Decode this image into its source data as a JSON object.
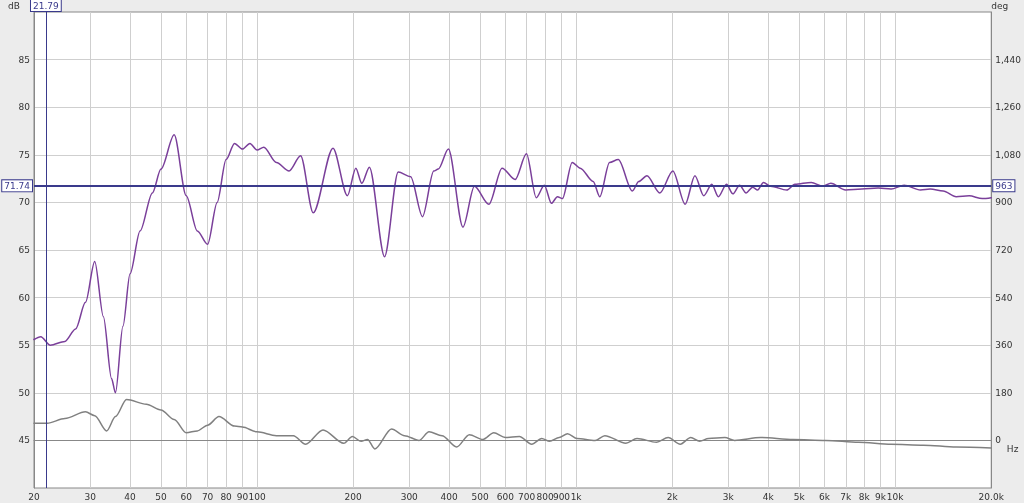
{
  "chart_data": {
    "type": "line",
    "xlabel": "Hz",
    "ylabel": "dB",
    "y2label": "deg",
    "log": "x",
    "grid": true,
    "marker": "none",
    "xlim": [
      20,
      20000
    ],
    "xticks": [
      20,
      30,
      40,
      50,
      60,
      70,
      80,
      90,
      100,
      200,
      300,
      400,
      500,
      600,
      700,
      800,
      900,
      {
        "value": 1000,
        "label": "1k"
      },
      {
        "value": 2000,
        "label": "2k"
      },
      {
        "value": 3000,
        "label": "3k"
      },
      {
        "value": 4000,
        "label": "4k"
      },
      {
        "value": 5000,
        "label": "5k"
      },
      {
        "value": 6000,
        "label": "6k"
      },
      {
        "value": 7000,
        "label": "7k"
      },
      {
        "value": 8000,
        "label": "8k"
      },
      {
        "value": 9000,
        "label": "9k"
      },
      {
        "value": 10000,
        "label": "10k"
      },
      {
        "value": 20000,
        "label": "20.0k"
      }
    ],
    "ylim": [
      40,
      90
    ],
    "yticks": [
      45,
      50,
      55,
      60,
      65,
      70,
      75,
      80,
      85
    ],
    "y2lim": [
      -180,
      1620
    ],
    "y2ticks": [
      0,
      180,
      360,
      540,
      720,
      900,
      {
        "value": 1080,
        "label": "1,080"
      },
      {
        "value": 1260,
        "label": "1,260"
      },
      {
        "value": 1440,
        "label": "1,440"
      }
    ],
    "ref_lines": [
      {
        "axis": "x",
        "value": 21.79,
        "label": "21.79",
        "color": "#3a3a8c"
      },
      {
        "axis": "y",
        "value": 71.74,
        "label": "71.74",
        "color": "#3a3a8c"
      },
      {
        "axis": "y2",
        "value": 963,
        "label": "963",
        "color": "#3a3a8c"
      }
    ],
    "series": [
      {
        "color": "#7a3f9a",
        "x": [
          20,
          21,
          22.5,
          25,
          27,
          29,
          31,
          33,
          35,
          36,
          38,
          40,
          43,
          47,
          50,
          55,
          60,
          65,
          70,
          75,
          80,
          85,
          90,
          95,
          100,
          105,
          115,
          126,
          137,
          150,
          173,
          192,
          204,
          213,
          225,
          251,
          277,
          303,
          330,
          358,
          370,
          398,
          442,
          480,
          533,
          586,
          644,
          699,
          750,
          795,
          837,
          874,
          906,
          972,
          1030,
          1131,
          1186,
          1273,
          1356,
          1500,
          1572,
          1667,
          1830,
          2010,
          2197,
          2357,
          2512,
          2662,
          2791,
          2960,
          3100,
          3253,
          3410,
          3575,
          3706,
          3867,
          4068,
          4574,
          4850,
          5460,
          5930,
          6285,
          6990,
          7870,
          8850,
          9710,
          10670,
          12000,
          12880,
          14140,
          15530,
          17060,
          18740,
          20000
        ],
        "values": [
          55.6,
          55.9,
          55.0,
          55.4,
          56.7,
          59.5,
          63.8,
          58,
          51.5,
          50.0,
          57,
          62.5,
          67,
          71,
          73.5,
          77.1,
          70.7,
          67,
          65.6,
          70,
          74.5,
          76.2,
          75.6,
          76.2,
          75.5,
          75.8,
          74.2,
          73.3,
          74.9,
          68.9,
          75.7,
          70.7,
          73.6,
          72.0,
          73.7,
          64.3,
          73.2,
          72.7,
          68.5,
          73.3,
          73.5,
          75.6,
          67.4,
          71.7,
          69.8,
          73.6,
          72.4,
          75.1,
          70.5,
          71.8,
          69.9,
          70.6,
          70.4,
          74.2,
          73.6,
          72.2,
          70.6,
          74.2,
          74.5,
          71.2,
          72.2,
          72.8,
          71.0,
          73.3,
          69.8,
          72.8,
          70.7,
          71.9,
          70.6,
          71.9,
          70.9,
          71.8,
          71.0,
          71.6,
          71.3,
          72.1,
          71.7,
          71.3,
          71.9,
          72.1,
          71.7,
          72.0,
          71.3,
          71.4,
          71.5,
          71.4,
          71.8,
          71.3,
          71.4,
          71.2,
          70.6,
          70.7,
          70.4,
          70.5
        ]
      },
      {
        "color": "#808080",
        "x": [
          20,
          22,
          25,
          29,
          31,
          33.8,
          36,
          39,
          45,
          50,
          55,
          60,
          65,
          70,
          76,
          85,
          90,
          100,
          115,
          130,
          142,
          161,
          187,
          199,
          212,
          222,
          234,
          264,
          290,
          322,
          346,
          380,
          422,
          463,
          510,
          552,
          600,
          664,
          726,
          780,
          826,
          885,
          940,
          1007,
          1147,
          1230,
          1432,
          1552,
          1787,
          1943,
          2120,
          2287,
          2439,
          2601,
          2925,
          3138,
          3787,
          4790,
          6060,
          7670,
          9710,
          12270,
          15530,
          20000
        ],
        "values": [
          46.8,
          46.8,
          47.3,
          48.0,
          47.6,
          46.0,
          47.5,
          49.3,
          48.8,
          48.2,
          47.2,
          45.8,
          46.0,
          46.6,
          47.5,
          46.5,
          46.4,
          45.9,
          45.5,
          45.5,
          44.6,
          46.1,
          44.7,
          45.4,
          44.9,
          45.1,
          44.1,
          46.2,
          45.5,
          45.0,
          45.9,
          45.5,
          44.3,
          45.6,
          45.1,
          45.8,
          45.3,
          45.4,
          44.6,
          45.2,
          44.9,
          45.3,
          45.7,
          45.2,
          45.0,
          45.5,
          44.7,
          45.2,
          44.8,
          45.3,
          44.6,
          45.3,
          44.9,
          45.2,
          45.3,
          45.0,
          45.3,
          45.1,
          45.0,
          44.8,
          44.6,
          44.5,
          44.3,
          44.2
        ]
      }
    ]
  }
}
